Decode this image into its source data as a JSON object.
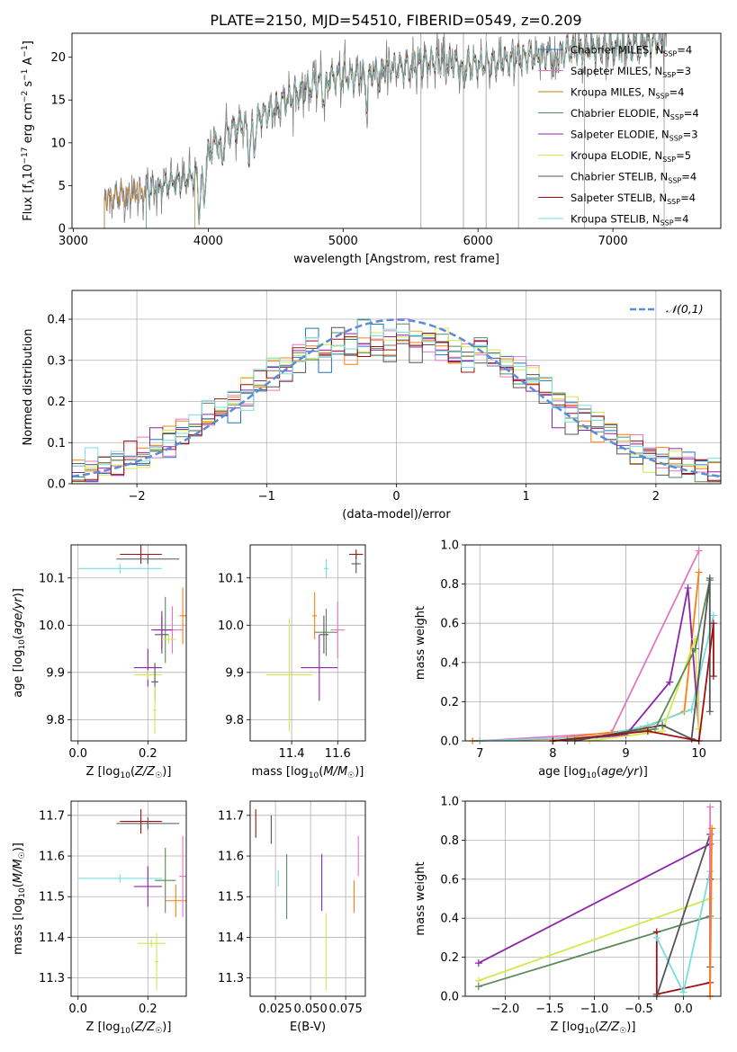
{
  "figure": {
    "title": "PLATE=2150, MJD=54510, FIBERID=0549, z=0.209"
  },
  "colors": {
    "Chabrier MILES": "#1f77b4",
    "Salpeter MILES": "#e377c2",
    "Kroupa MILES": "#b8860b",
    "Chabrier ELODIE": "#5a8a5a",
    "Salpeter ELODIE": "#8e24aa",
    "Kroupa ELODIE": "#d4e84a",
    "Chabrier STELIB": "#555555",
    "Salpeter STELIB": "#a01010",
    "Kroupa STELIB": "#77dddd",
    "orange": "#ff7f0e",
    "normal": "#5b8bd9"
  },
  "chart_data": [
    {
      "id": "spectrum",
      "type": "line",
      "xlabel": "wavelength [Angstrom, rest frame]",
      "ylabel": "Flux [f_λ10^-17 erg cm^-2 s^-1 A^-1]",
      "xlim": [
        2990,
        7800
      ],
      "ylim": [
        0,
        22.8
      ],
      "xticks": [
        3000,
        4000,
        5000,
        6000,
        7000
      ],
      "yticks": [
        0,
        5,
        10,
        15,
        20
      ],
      "legend_position": "right",
      "legend": [
        {
          "model": "Chabrier MILES",
          "nssp": "4"
        },
        {
          "model": "Salpeter MILES",
          "nssp": "3"
        },
        {
          "model": "Kroupa MILES",
          "nssp": "4"
        },
        {
          "model": "Chabrier ELODIE",
          "nssp": "4"
        },
        {
          "model": "Salpeter ELODIE",
          "nssp": "3"
        },
        {
          "model": "Kroupa ELODIE",
          "nssp": "5"
        },
        {
          "model": "Chabrier STELIB",
          "nssp": "4"
        },
        {
          "model": "Salpeter STELIB",
          "nssp": "4"
        },
        {
          "model": "Kroupa STELIB",
          "nssp": "4"
        }
      ],
      "continuum": {
        "x": [
          3230,
          3500,
          3700,
          3900,
          4000,
          4100,
          4300,
          4500,
          4700,
          4900,
          5100,
          5300,
          5500,
          5700,
          5900,
          6100,
          6300,
          6500,
          6700,
          6900,
          7100,
          7300,
          7400
        ],
        "y": [
          3.5,
          4.2,
          5.2,
          6.0,
          8.8,
          11.0,
          12.2,
          14.2,
          16.2,
          17.6,
          17.8,
          18.6,
          19.0,
          19.6,
          19.0,
          19.4,
          19.8,
          20.2,
          20.8,
          21.2,
          21.2,
          21.8,
          22.3
        ]
      },
      "dips": [
        [
          3934,
          5.0
        ],
        [
          3969,
          4.5
        ],
        [
          4102,
          3.0
        ],
        [
          4304,
          3.5
        ],
        [
          4341,
          3.0
        ],
        [
          4861,
          2.5
        ],
        [
          5175,
          3.0
        ],
        [
          5270,
          1.5
        ],
        [
          5892,
          1.5
        ],
        [
          6563,
          2.0
        ]
      ]
    },
    {
      "id": "residuals",
      "type": "histogram",
      "xlabel": "(data-model)/error",
      "ylabel": "Normed distribution",
      "xlim": [
        -2.5,
        2.5
      ],
      "ylim": [
        0,
        0.47
      ],
      "xticks": [
        -2,
        -1,
        0,
        1,
        2
      ],
      "yticks": [
        0.0,
        0.1,
        0.2,
        0.3,
        0.4
      ],
      "grid": true,
      "bin_width": 0.1,
      "series_colors": [
        "Chabrier MILES",
        "Salpeter MILES",
        "orange",
        "Chabrier ELODIE",
        "Salpeter ELODIE",
        "Kroupa ELODIE",
        "Chabrier STELIB",
        "Salpeter STELIB",
        "Kroupa STELIB"
      ],
      "normal_legend": "𝒩(0,1)",
      "legend_position": "top-right"
    },
    {
      "id": "age_vs_z",
      "type": "errorbar",
      "xlabel": "Z [log10(Z/Z☉)]",
      "ylabel": "age  [log10(age/yr)]",
      "xlim": [
        -0.02,
        0.31
      ],
      "ylim": [
        9.755,
        10.17
      ],
      "xticks": [
        0.0,
        0.2
      ],
      "yticks": [
        9.8,
        9.9,
        10.0,
        10.1
      ],
      "points": [
        {
          "c": "Salpeter STELIB",
          "x": 0.18,
          "xe": 0.06,
          "y": 10.15,
          "ye": 0.02
        },
        {
          "c": "Chabrier STELIB",
          "x": 0.2,
          "xe": 0.09,
          "y": 10.14,
          "ye": 0.01
        },
        {
          "c": "Kroupa STELIB",
          "x": 0.12,
          "xe": 0.12,
          "y": 10.12,
          "ye": 0.01
        },
        {
          "c": "Chabrier ELODIE",
          "x": 0.25,
          "xe": 0.03,
          "y": 9.99,
          "ye": 0.07
        },
        {
          "c": "orange",
          "x": 0.3,
          "xe": 0.01,
          "y": 10.02,
          "ye": 0.06
        },
        {
          "c": "Chabrier STELIB",
          "x": 0.24,
          "xe": 0.02,
          "y": 9.98,
          "ye": 0.04
        },
        {
          "c": "Salpeter MILES",
          "x": 0.27,
          "xe": 0.03,
          "y": 9.99,
          "ye": 0.05
        },
        {
          "c": "Salpeter ELODIE",
          "x": 0.24,
          "xe": 0.03,
          "y": 9.99,
          "ye": 0.04
        },
        {
          "c": "Kroupa ELODIE",
          "x": 0.26,
          "xe": 0.02,
          "y": 9.97,
          "ye": 0.01
        },
        {
          "c": "Salpeter ELODIE",
          "x": 0.2,
          "xe": 0.04,
          "y": 9.91,
          "ye": 0.04
        },
        {
          "c": "Kroupa ELODIE",
          "x": 0.2,
          "xe": 0.04,
          "y": 9.895,
          "ye": 0.01
        },
        {
          "c": "Chabrier STELIB",
          "x": 0.22,
          "xe": 0.01,
          "y": 9.88,
          "ye": 0.04
        },
        {
          "c": "Kroupa ELODIE",
          "x": 0.22,
          "xe": 0.005,
          "y": 9.82,
          "ye": 0.05
        }
      ]
    },
    {
      "id": "age_vs_mass",
      "type": "errorbar",
      "xlabel": "mass [log10(M/M☉)]",
      "xlim": [
        11.22,
        11.72
      ],
      "ylim": [
        9.755,
        10.17
      ],
      "xticks": [
        11.4,
        11.6
      ],
      "yticks": [
        9.8,
        9.9,
        10.0,
        10.1
      ],
      "points": [
        {
          "c": "Salpeter STELIB",
          "x": 11.68,
          "xe": 0.03,
          "y": 10.15,
          "ye": 0.01
        },
        {
          "c": "Chabrier STELIB",
          "x": 11.68,
          "xe": 0.02,
          "y": 10.13,
          "ye": 0.02
        },
        {
          "c": "Kroupa STELIB",
          "x": 11.55,
          "xe": 0.01,
          "y": 10.12,
          "ye": 0.02
        },
        {
          "c": "orange",
          "x": 11.5,
          "xe": 0.01,
          "y": 10.02,
          "ye": 0.05
        },
        {
          "c": "Chabrier ELODIE",
          "x": 11.55,
          "xe": 0.05,
          "y": 9.985,
          "ye": 0.05
        },
        {
          "c": "Salpeter MILES",
          "x": 11.6,
          "xe": 0.03,
          "y": 9.99,
          "ye": 0.06
        },
        {
          "c": "Chabrier STELIB",
          "x": 11.54,
          "xe": 0.02,
          "y": 9.98,
          "ye": 0.04
        },
        {
          "c": "Salpeter ELODIE",
          "x": 11.52,
          "xe": 0.08,
          "y": 9.91,
          "ye": 0.07
        },
        {
          "c": "Kroupa ELODIE",
          "x": 11.39,
          "xe": 0.1,
          "y": 9.895,
          "ye": 0.12
        }
      ]
    },
    {
      "id": "weight_vs_age",
      "type": "line",
      "xlabel": "age  [log10(age/yr)]",
      "ylabel": "mass weight",
      "xlim": [
        6.8,
        10.3
      ],
      "ylim": [
        0,
        1.0
      ],
      "xticks": [
        7,
        8,
        9,
        10
      ],
      "yticks": [
        0.0,
        0.2,
        0.4,
        0.6,
        0.8,
        1.0
      ],
      "grid": true,
      "series": [
        {
          "c": "Salpeter MILES",
          "x": [
            7.0,
            8.8,
            10.0
          ],
          "y": [
            0.0,
            0.04,
            0.97
          ]
        },
        {
          "c": "orange",
          "x": [
            6.9,
            8.0,
            9.2,
            9.8,
            10.0
          ],
          "y": [
            0.0,
            0.01,
            0.06,
            0.15,
            0.86
          ]
        },
        {
          "c": "Kroupa STELIB",
          "x": [
            7.0,
            8.6,
            9.3,
            9.9,
            10.2
          ],
          "y": [
            0.0,
            0.02,
            0.08,
            0.16,
            0.64
          ]
        },
        {
          "c": "Salpeter ELODIE",
          "x": [
            8.0,
            9.0,
            9.6,
            9.85,
            10.0
          ],
          "y": [
            0.0,
            0.03,
            0.3,
            0.78,
            0.06
          ]
        },
        {
          "c": "Kroupa ELODIE",
          "x": [
            8.5,
            9.5,
            9.95,
            10.0
          ],
          "y": [
            0.0,
            0.05,
            0.52,
            0.06
          ]
        },
        {
          "c": "Chabrier ELODIE",
          "x": [
            8.2,
            9.4,
            9.95,
            10.15
          ],
          "y": [
            0.0,
            0.06,
            0.47,
            0.82
          ]
        },
        {
          "c": "Chabrier STELIB",
          "x": [
            8.3,
            9.5,
            9.9,
            10.15,
            10.15
          ],
          "y": [
            0.0,
            0.08,
            0.01,
            0.83,
            0.15
          ]
        },
        {
          "c": "Salpeter STELIB",
          "x": [
            8.0,
            9.3,
            10.0,
            10.2,
            10.2
          ],
          "y": [
            0.0,
            0.05,
            0.0,
            0.6,
            0.33
          ]
        }
      ]
    },
    {
      "id": "mass_vs_z",
      "type": "errorbar",
      "xlabel": "Z [log10(Z/Z☉)]",
      "ylabel": "mass [log10(M/M☉)]",
      "xlim": [
        -0.02,
        0.31
      ],
      "ylim": [
        11.255,
        11.735
      ],
      "xticks": [
        0.0,
        0.2
      ],
      "yticks": [
        11.3,
        11.4,
        11.5,
        11.6,
        11.7
      ],
      "points": [
        {
          "c": "Salpeter STELIB",
          "x": 0.18,
          "xe": 0.06,
          "y": 11.685,
          "ye": 0.03
        },
        {
          "c": "Chabrier STELIB",
          "x": 0.2,
          "xe": 0.09,
          "y": 11.68,
          "ye": 0.015
        },
        {
          "c": "Kroupa STELIB",
          "x": 0.12,
          "xe": 0.12,
          "y": 11.545,
          "ye": 0.01
        },
        {
          "c": "Chabrier ELODIE",
          "x": 0.25,
          "xe": 0.03,
          "y": 11.54,
          "ye": 0.08
        },
        {
          "c": "Salpeter MILES",
          "x": 0.3,
          "xe": 0.01,
          "y": 11.55,
          "ye": 0.1
        },
        {
          "c": "orange",
          "x": 0.28,
          "xe": 0.03,
          "y": 11.49,
          "ye": 0.04
        },
        {
          "c": "Salpeter ELODIE",
          "x": 0.2,
          "xe": 0.04,
          "y": 11.525,
          "ye": 0.05
        },
        {
          "c": "Kroupa ELODIE",
          "x": 0.21,
          "xe": 0.04,
          "y": 11.385,
          "ye": 0.01
        },
        {
          "c": "Kroupa ELODIE",
          "x": 0.225,
          "xe": 0.005,
          "y": 11.34,
          "ye": 0.07
        }
      ]
    },
    {
      "id": "mass_vs_ebv",
      "type": "errorbar",
      "xlabel": "E(B-V)",
      "xlim": [
        0.007,
        0.089
      ],
      "ylim": [
        11.255,
        11.735
      ],
      "xticks": [
        0.025,
        0.05,
        0.075
      ],
      "xticklabels": [
        "0.025",
        "0.050",
        "0.075"
      ],
      "yticks": [
        11.3,
        11.4,
        11.5,
        11.6,
        11.7
      ],
      "points": [
        {
          "c": "Salpeter STELIB",
          "x": 0.011,
          "y": 11.68,
          "ye": 0.035
        },
        {
          "c": "Chabrier STELIB",
          "x": 0.022,
          "y": 11.665,
          "ye": 0.035
        },
        {
          "c": "Kroupa STELIB",
          "x": 0.027,
          "y": 11.545,
          "ye": 0.02
        },
        {
          "c": "Chabrier ELODIE",
          "x": 0.033,
          "y": 11.525,
          "ye": 0.08
        },
        {
          "c": "Salpeter ELODIE",
          "x": 0.058,
          "y": 11.535,
          "ye": 0.07
        },
        {
          "c": "Kroupa ELODIE",
          "x": 0.061,
          "y": 11.365,
          "ye": 0.095
        },
        {
          "c": "orange",
          "x": 0.081,
          "y": 11.5,
          "ye": 0.04
        },
        {
          "c": "Salpeter MILES",
          "x": 0.084,
          "y": 11.6,
          "ye": 0.05
        }
      ]
    },
    {
      "id": "weight_vs_z",
      "type": "line",
      "xlabel": "Z [log10(Z/Z☉)]",
      "ylabel": "mass weight",
      "xlim": [
        -2.45,
        0.42
      ],
      "ylim": [
        0,
        1.0
      ],
      "xticks": [
        -2.0,
        -1.5,
        -1.0,
        -0.5,
        0.0
      ],
      "yticks": [
        0.0,
        0.2,
        0.4,
        0.6,
        0.8,
        1.0
      ],
      "grid": true,
      "series": [
        {
          "c": "Salpeter ELODIE",
          "x": [
            -2.3,
            0.3
          ],
          "y": [
            0.17,
            0.78
          ]
        },
        {
          "c": "Kroupa ELODIE",
          "x": [
            -2.3,
            0.3
          ],
          "y": [
            0.08,
            0.5
          ]
        },
        {
          "c": "Chabrier ELODIE",
          "x": [
            -2.3,
            0.3
          ],
          "y": [
            0.05,
            0.41
          ]
        },
        {
          "c": "Salpeter STELIB",
          "x": [
            -0.3,
            -0.3,
            0.3,
            0.3
          ],
          "y": [
            0.33,
            0.01,
            0.07,
            0.6
          ]
        },
        {
          "c": "Kroupa STELIB",
          "x": [
            -0.3,
            0.0,
            0.3
          ],
          "y": [
            0.3,
            0.02,
            0.64
          ]
        },
        {
          "c": "Chabrier STELIB",
          "x": [
            -0.3,
            0.3,
            0.3
          ],
          "y": [
            0.0,
            0.83,
            0.15
          ]
        },
        {
          "c": "Salpeter MILES",
          "x": [
            0.3,
            0.3
          ],
          "y": [
            0.0,
            0.97
          ]
        },
        {
          "c": "orange",
          "x": [
            0.3,
            0.32
          ],
          "y": [
            0.0,
            0.86
          ]
        }
      ]
    }
  ]
}
